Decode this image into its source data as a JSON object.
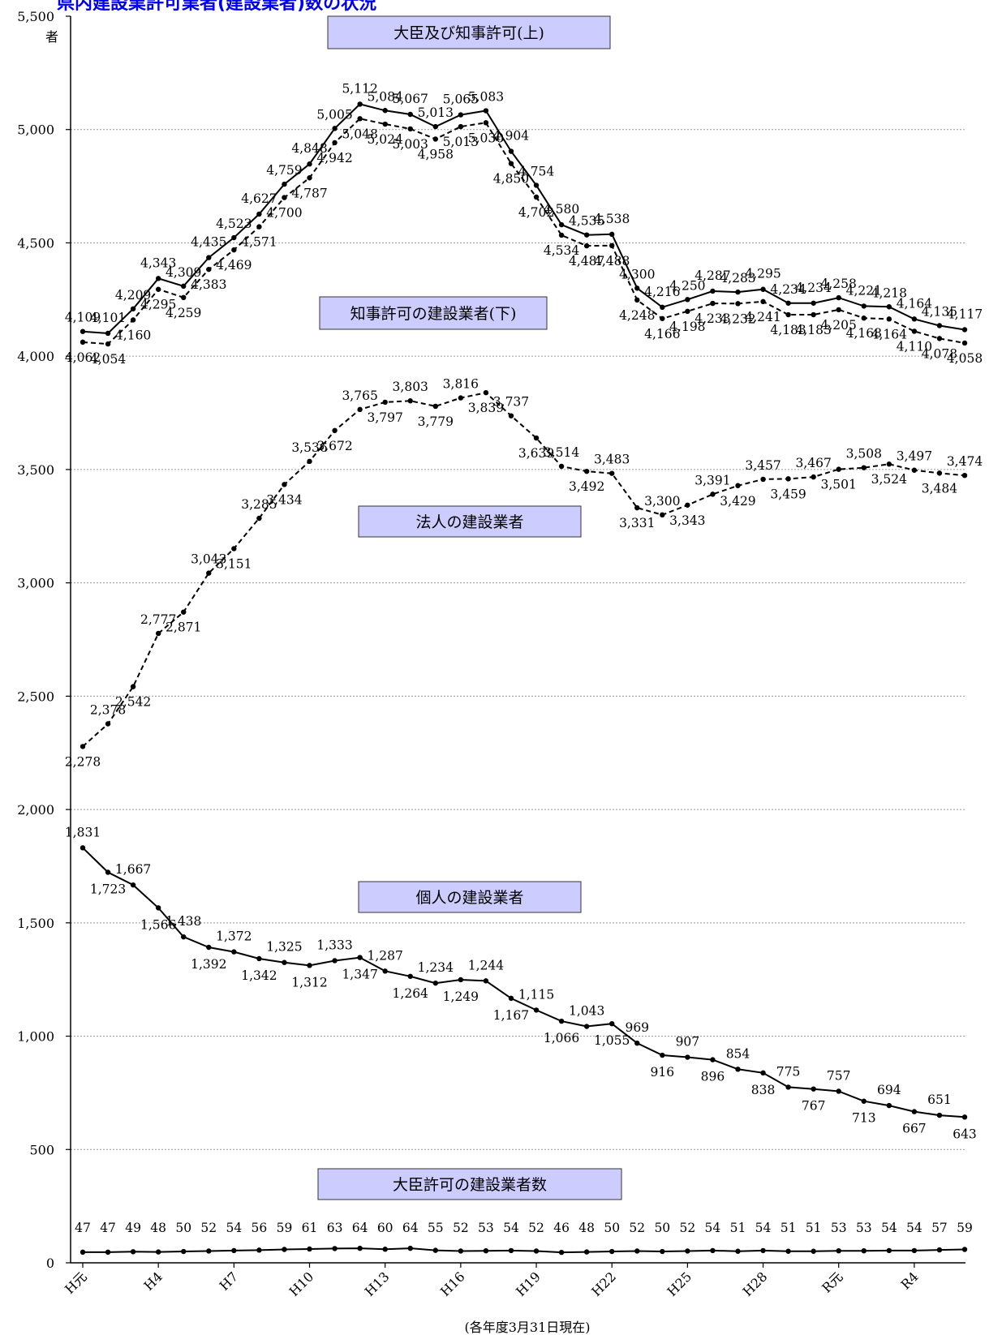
{
  "page_title": "県内建設業許可業者(建設業者)数の状況",
  "chart_data": {
    "type": "line",
    "unit": "者",
    "ylim": [
      0,
      5500
    ],
    "yticks": [
      0,
      500,
      1000,
      1500,
      2000,
      2500,
      3000,
      3500,
      4000,
      4500,
      5000,
      5500
    ],
    "grid": true,
    "x": [
      "H元",
      "H2",
      "H3",
      "H4",
      "H5",
      "H6",
      "H7",
      "H8",
      "H9",
      "H10",
      "H11",
      "H12",
      "H13",
      "H14",
      "H15",
      "H16",
      "H17",
      "H18",
      "H19",
      "H20",
      "H21",
      "H22",
      "H23",
      "H24",
      "H25",
      "H26",
      "H27",
      "H28",
      "H29",
      "H30",
      "R元",
      "R2",
      "R3",
      "R4",
      "R5",
      "R6"
    ],
    "x_tick_labels": [
      "H元",
      "H4",
      "H7",
      "H10",
      "H13",
      "H16",
      "H19",
      "H22",
      "H25",
      "H28",
      "R元",
      "R4"
    ],
    "x_tick_step": 3,
    "x_note": "(各年度3月31日現在)",
    "series": [
      {
        "name": "大臣及び知事許可(上)",
        "style": "solid",
        "values": [
          4109,
          4101,
          4209,
          4343,
          4309,
          4435,
          4523,
          4627,
          4759,
          4848,
          5005,
          5112,
          5084,
          5067,
          5013,
          5065,
          5083,
          4904,
          4754,
          4580,
          4535,
          4538,
          4300,
          4216,
          4250,
          4287,
          4283,
          4295,
          4234,
          4234,
          4258,
          4221,
          4218,
          4164,
          4135,
          4117
        ]
      },
      {
        "name": "知事許可の建設業者(下)",
        "style": "dashed",
        "values": [
          4062,
          4054,
          4160,
          4295,
          4259,
          4383,
          4469,
          4571,
          4700,
          4787,
          4942,
          5048,
          5024,
          5003,
          4958,
          5013,
          5030,
          4850,
          4702,
          4534,
          4487,
          4488,
          4248,
          4166,
          4198,
          4233,
          4232,
          4241,
          4183,
          4183,
          4205,
          4168,
          4164,
          4110,
          4078,
          4058
        ]
      },
      {
        "name": "法人の建設業者",
        "style": "dashed",
        "values": [
          2278,
          2378,
          2542,
          2777,
          2871,
          3043,
          3151,
          3285,
          3434,
          3536,
          3672,
          3765,
          3797,
          3803,
          3779,
          3816,
          3839,
          3737,
          3639,
          3514,
          3492,
          3483,
          3331,
          3300,
          3343,
          3391,
          3429,
          3457,
          3459,
          3467,
          3501,
          3508,
          3524,
          3497,
          3484,
          3474
        ]
      },
      {
        "name": "個人の建設業者",
        "style": "solid",
        "values": [
          1831,
          1723,
          1667,
          1566,
          1438,
          1392,
          1372,
          1342,
          1325,
          1312,
          1333,
          1347,
          1287,
          1264,
          1234,
          1249,
          1244,
          1167,
          1115,
          1066,
          1043,
          1055,
          969,
          916,
          907,
          896,
          854,
          838,
          775,
          767,
          757,
          713,
          694,
          667,
          651,
          643
        ]
      },
      {
        "name": "大臣許可の建設業者数",
        "style": "solid",
        "values": [
          47,
          47,
          49,
          48,
          50,
          52,
          54,
          56,
          59,
          61,
          63,
          64,
          60,
          64,
          55,
          52,
          53,
          54,
          52,
          46,
          48,
          50,
          52,
          50,
          52,
          54,
          51,
          54,
          51,
          51,
          53,
          53,
          54,
          54,
          57,
          59
        ]
      }
    ]
  }
}
